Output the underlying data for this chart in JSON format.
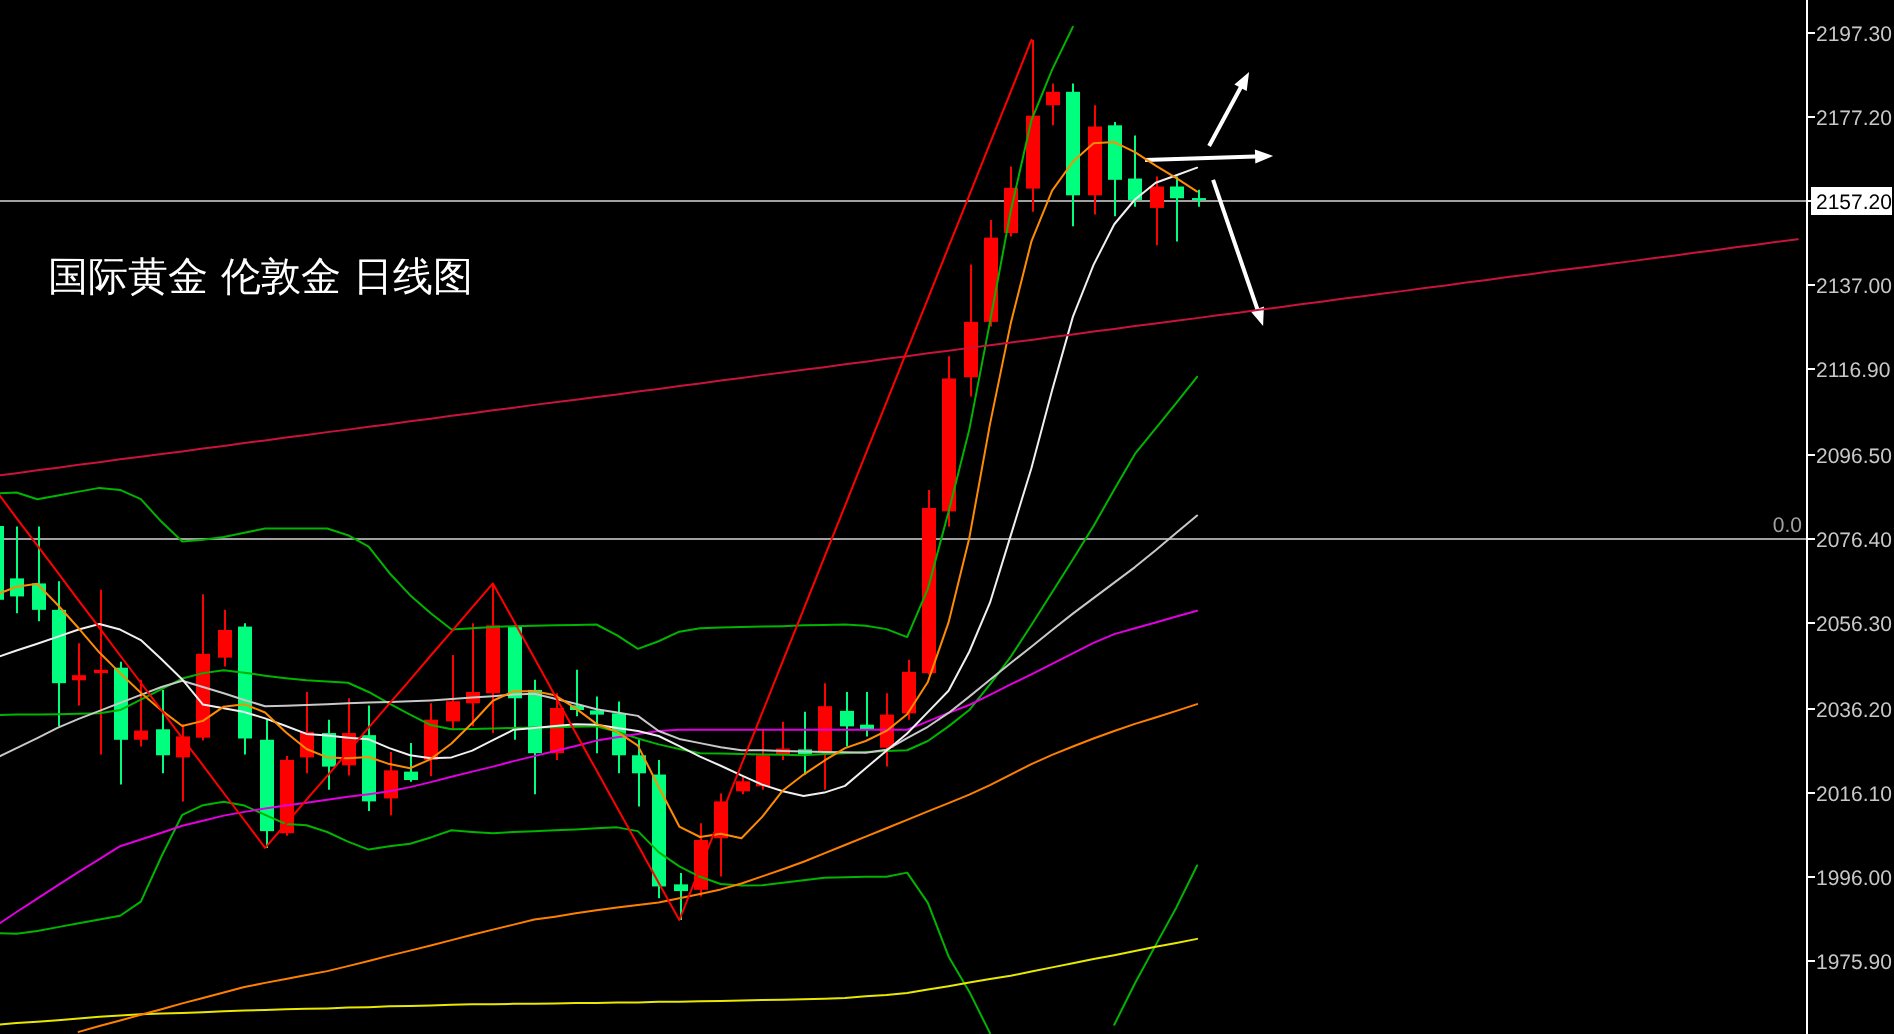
{
  "chart_data": {
    "type": "candlestick",
    "title": "国际黄金 伦敦金 日线图",
    "categories": [
      null,
      null,
      null,
      null,
      null,
      null,
      null,
      null,
      null,
      null,
      null,
      null,
      null,
      null,
      null,
      null,
      null,
      null,
      null,
      null,
      null,
      null,
      null,
      null,
      null,
      null,
      null,
      null,
      null,
      null,
      null,
      null,
      null,
      null,
      null,
      null,
      null,
      null,
      null,
      null,
      null,
      null,
      null,
      null,
      null,
      null,
      null,
      null,
      null,
      null,
      null,
      null,
      null,
      null,
      null,
      null,
      null,
      null,
      null,
      null,
      null,
      null,
      null,
      null,
      null,
      null,
      null,
      null,
      null,
      null,
      null,
      null,
      null,
      null,
      null,
      null,
      null,
      null,
      null,
      null,
      null,
      null,
      null,
      null,
      null,
      null,
      null,
      null
    ],
    "ohlc": [
      [
        2079.4,
        2079.4,
        2061.8,
        2061.8
      ],
      [
        2066.9,
        2079.3,
        2058.6,
        2062.6
      ],
      [
        2065.7,
        2079.3,
        2056.7,
        2059.4
      ],
      [
        2059.4,
        2066.2,
        2031.6,
        2041.9
      ],
      [
        2042.6,
        2051.4,
        2036.6,
        2043.8
      ],
      [
        2044.3,
        2064.2,
        2024.9,
        2045.1
      ],
      [
        2045.6,
        2047.0,
        2017.7,
        2028.4
      ],
      [
        2028.4,
        2042.7,
        2026.8,
        2030.6
      ],
      [
        2030.9,
        2040.3,
        2020.4,
        2024.7
      ],
      [
        2024.2,
        2032.1,
        2013.7,
        2029.2
      ],
      [
        2028.9,
        2063.1,
        2028.2,
        2048.9
      ],
      [
        2048.0,
        2059.4,
        2045.9,
        2054.6
      ],
      [
        2055.4,
        2056.2,
        2024.9,
        2028.7
      ],
      [
        2028.4,
        2033.2,
        2002.6,
        2006.6
      ],
      [
        2006.1,
        2024.5,
        2005.5,
        2023.6
      ],
      [
        2024.2,
        2039.8,
        2020.4,
        2030.3
      ],
      [
        2030.0,
        2033.2,
        2016.5,
        2022.0
      ],
      [
        2022.3,
        2038.3,
        2019.9,
        2030.0
      ],
      [
        2029.5,
        2036.6,
        2011.4,
        2013.7
      ],
      [
        2014.4,
        2025.5,
        2010.4,
        2021.1
      ],
      [
        2020.8,
        2027.6,
        2018.4,
        2018.8
      ],
      [
        2023.6,
        2037.1,
        2019.7,
        2033.2
      ],
      [
        2032.8,
        2048.6,
        2030.8,
        2037.6
      ],
      [
        2037.1,
        2056.2,
        2031.6,
        2039.8
      ],
      [
        2039.5,
        2065.7,
        2030.0,
        2055.7
      ],
      [
        2055.4,
        2055.7,
        2028.4,
        2038.3
      ],
      [
        2040.3,
        2042.7,
        2015.4,
        2025.2
      ],
      [
        2025.2,
        2039.5,
        2023.6,
        2036.0
      ],
      [
        2036.6,
        2045.1,
        2034.0,
        2035.5
      ],
      [
        2035.4,
        2038.7,
        2025.2,
        2034.4
      ],
      [
        2034.7,
        2037.5,
        2020.4,
        2024.7
      ],
      [
        2024.7,
        2028.7,
        2012.5,
        2020.4
      ],
      [
        2020.1,
        2023.6,
        1990.6,
        1993.4
      ],
      [
        1993.9,
        1996.6,
        1985.4,
        1992.3
      ],
      [
        1992.6,
        2008.5,
        1991.0,
        2004.5
      ],
      [
        2004.9,
        2015.6,
        1995.8,
        2013.7
      ],
      [
        2016.1,
        2019.7,
        2015.4,
        2018.5
      ],
      [
        2017.3,
        2030.8,
        2016.5,
        2024.7
      ],
      [
        2024.9,
        2032.7,
        2023.6,
        2026.3
      ],
      [
        2026.1,
        2035.1,
        2020.1,
        2024.9
      ],
      [
        2025.5,
        2041.9,
        2016.5,
        2036.4
      ],
      [
        2035.3,
        2039.8,
        2026.8,
        2031.6
      ],
      [
        2032.0,
        2039.8,
        2029.2,
        2030.8
      ],
      [
        2026.5,
        2039.5,
        2022.0,
        2034.4
      ],
      [
        2034.7,
        2047.5,
        2033.2,
        2044.6
      ],
      [
        2044.3,
        2088.0,
        2044.0,
        2083.7
      ],
      [
        2082.9,
        2119.9,
        2079.3,
        2114.6
      ],
      [
        2114.9,
        2141.8,
        2110.3,
        2128.1
      ],
      [
        2128.1,
        2152.4,
        2127.0,
        2148.2
      ],
      [
        2149.3,
        2165.2,
        2148.5,
        2160.1
      ],
      [
        2159.9,
        2195.4,
        2154.4,
        2177.3
      ],
      [
        2179.8,
        2185.0,
        2175.0,
        2183.0
      ],
      [
        2183.0,
        2185.0,
        2150.9,
        2158.3
      ],
      [
        2158.3,
        2179.8,
        2153.7,
        2174.7
      ],
      [
        2175.0,
        2175.8,
        2153.3,
        2162.0
      ],
      [
        2162.3,
        2172.6,
        2155.6,
        2157.2
      ],
      [
        2155.3,
        2162.8,
        2146.4,
        2160.4
      ],
      [
        2160.4,
        2162.8,
        2147.3,
        2157.6
      ],
      [
        2157.6,
        2159.6,
        2155.6,
        2157.2
      ],
      null,
      null,
      null,
      null,
      null,
      null,
      null,
      null,
      null,
      null,
      null,
      null,
      null,
      null,
      null,
      null,
      null,
      null,
      null,
      null,
      null,
      null,
      null,
      null,
      null,
      null,
      null,
      null,
      null
    ],
    "colors": [
      "#00ff7f",
      "#00ff7f",
      "#00ff7f",
      "#00ff7f",
      "#ff0000",
      "#ff0000",
      "#00ff7f",
      "#ff0000",
      "#00ff7f",
      "#ff0000",
      "#ff0000",
      "#ff0000",
      "#00ff7f",
      "#00ff7f",
      "#ff0000",
      "#ff0000",
      "#00ff7f",
      "#ff0000",
      "#00ff7f",
      "#ff0000",
      "#00ff7f",
      "#ff0000",
      "#ff0000",
      "#ff0000",
      "#ff0000",
      "#00ff7f",
      "#00ff7f",
      "#ff0000",
      "#00ff7f",
      "#00ff7f",
      "#00ff7f",
      "#00ff7f",
      "#00ff7f",
      "#00ff7f",
      "#ff0000",
      "#ff0000",
      "#ff0000",
      "#ff0000",
      "#ff0000",
      "#00ff7f",
      "#ff0000",
      "#00ff7f",
      "#00ff7f",
      "#ff0000",
      "#ff0000",
      "#ff0000",
      "#ff0000",
      "#ff0000",
      "#ff0000",
      "#ff0000",
      "#ff0000",
      "#ff0000",
      "#00ff7f",
      "#ff0000",
      "#00ff7f",
      "#00ff7f",
      "#ff0000",
      "#00ff7f",
      "#00ff7f",
      null,
      null,
      null,
      null,
      null,
      null,
      null,
      null,
      null,
      null,
      null,
      null,
      null,
      null,
      null,
      null,
      null,
      null,
      null,
      null,
      null,
      null,
      null,
      null,
      null,
      null,
      null,
      null,
      null
    ],
    "ylim": [
      1958.2,
      2204.9
    ],
    "yticks": [
      {
        "value": 1975.9,
        "label": "1975.90"
      },
      {
        "value": 1996.0,
        "label": "1996.00"
      },
      {
        "value": 2016.1,
        "label": "2016.10"
      },
      {
        "value": 2036.2,
        "label": "2036.20"
      },
      {
        "value": 2056.3,
        "label": "2056.30"
      },
      {
        "value": 2076.4,
        "label": "2076.40"
      },
      {
        "value": 2096.5,
        "label": "2096.50"
      },
      {
        "value": 2116.9,
        "label": "2116.90"
      },
      {
        "value": 2137.0,
        "label": "2137.00"
      },
      {
        "value": 2157.2,
        "label": "2157.20"
      },
      {
        "value": 2177.2,
        "label": "2177.20"
      },
      {
        "value": 2197.3,
        "label": "2197.30"
      }
    ],
    "tick_labels": "y",
    "ref_lines": [
      {
        "axis": "y",
        "value": 2157.2,
        "color": "#a0a0a0"
      },
      {
        "axis": "y",
        "value": 2076.4,
        "color": "#a0a0a0"
      }
    ],
    "annotations": [
      {
        "text": "0.0",
        "y": 2076.4
      }
    ],
    "series": [
      {
        "type": "line",
        "color": "#00b400",
        "values": [
          2087.2,
          2087.4,
          2085.8,
          2086.7,
          2087.6,
          2088.5,
          2088.0,
          2085.8,
          2080.4,
          2075.7,
          2076.1,
          2076.8,
          2077.8,
          2078.8,
          2078.8,
          2078.8,
          2078.8,
          2077.2,
          2074.5,
          2068.2,
          2062.9,
          2058.6,
          2054.7,
          2055.0,
          2055.3,
          2055.5,
          2055.6,
          2055.7,
          2055.8,
          2055.9,
          2053.3,
          2050.1,
          2051.9,
          2054.2,
          2055.0,
          2055.2,
          2055.3,
          2055.4,
          2055.5,
          2055.7,
          2055.8,
          2055.9,
          2055.6,
          2054.8,
          2052.9,
          2064.4,
          2082.8,
          2102.4,
          2128.1,
          2154.5,
          2176.2,
          2188.3,
          2198.5,
          null,
          null,
          null,
          null,
          null,
          null,
          null,
          null,
          null,
          null,
          null,
          null,
          null,
          null,
          null,
          null,
          null,
          null,
          null,
          null,
          null,
          null,
          null,
          null,
          null,
          null,
          null,
          null,
          null,
          null,
          null,
          null,
          null,
          null,
          null
        ]
      },
      {
        "type": "line",
        "color": "#00b400",
        "values": [
          2034.3,
          2034.4,
          2034.4,
          2034.5,
          2034.6,
          2034.7,
          2035.5,
          2038.0,
          2040.5,
          2043.0,
          2044.3,
          2045.0,
          2044.4,
          2043.7,
          2043.1,
          2042.6,
          2042.3,
          2042.0,
          2039.8,
          2037.0,
          2034.4,
          2031.9,
          2030.9,
          2031.0,
          2031.1,
          2031.2,
          2031.3,
          2031.4,
          2031.5,
          2031.6,
          2030.3,
          2028.7,
          2027.3,
          2026.2,
          2025.2,
          2025.1,
          2025.0,
          2024.9,
          2024.8,
          2024.7,
          2025.0,
          2025.2,
          2025.5,
          2025.7,
          2025.9,
          2028.1,
          2031.6,
          2035.5,
          2041.6,
          2048.2,
          2055.8,
          2063.6,
          2071.4,
          2079.4,
          2088.1,
          2096.6,
          2102.7,
          2108.8,
          2115.0,
          null,
          null,
          null,
          null,
          null,
          null,
          null,
          null,
          null,
          null,
          null,
          null,
          null,
          null,
          null,
          null,
          null,
          null,
          null,
          null,
          null,
          null,
          null,
          null,
          null,
          null,
          null,
          null,
          null
        ]
      },
      {
        "type": "line",
        "color": "#00b400",
        "values": [
          1982.3,
          1982.1,
          1982.8,
          1983.7,
          1984.6,
          1985.5,
          1986.4,
          1989.8,
          2000.6,
          2010.5,
          2012.8,
          2013.6,
          2012.7,
          2010.5,
          2008.3,
          2008.0,
          2006.4,
          2004.1,
          2002.2,
          2003.0,
          2003.6,
          2005.1,
          2006.8,
          2006.4,
          2006.1,
          2006.4,
          2006.6,
          2006.8,
          2007.0,
          2007.3,
          2007.5,
          2006.6,
          2001.6,
          1998.2,
          1995.7,
          1994.0,
          1993.6,
          1993.7,
          1994.3,
          1994.9,
          1995.5,
          1995.6,
          1995.7,
          1995.7,
          1996.7,
          1989.5,
          1976.7,
          1968.3,
          1958.4,
          null,
          null,
          null,
          null,
          null,
          1960.4,
          1970.3,
          1979.4,
          1988.4,
          1998.4,
          null,
          null,
          null,
          null,
          null,
          null,
          null,
          null,
          null,
          null,
          null,
          null,
          null,
          null,
          null,
          null,
          null,
          null,
          null,
          null,
          null,
          null,
          null,
          null,
          null,
          null,
          null,
          null,
          null
        ]
      },
      {
        "type": "line",
        "color": "#e8e800",
        "values": [
          1960.4,
          1960.8,
          1961.1,
          1961.5,
          1961.9,
          1962.3,
          1962.6,
          1962.9,
          1963.1,
          1963.2,
          1963.4,
          1963.6,
          1963.8,
          1963.9,
          1964.1,
          1964.2,
          1964.3,
          1964.5,
          1964.6,
          1964.8,
          1964.9,
          1965.0,
          1965.2,
          1965.3,
          1965.3,
          1965.4,
          1965.4,
          1965.5,
          1965.6,
          1965.6,
          1965.7,
          1965.7,
          1965.9,
          1965.9,
          1966.0,
          1966.1,
          1966.2,
          1966.3,
          1966.4,
          1966.5,
          1966.6,
          1966.8,
          1967.2,
          1967.5,
          1968.0,
          1968.8,
          1969.6,
          1970.5,
          1971.3,
          1972.1,
          1973.1,
          1974.1,
          1975.1,
          1976.1,
          1977.0,
          1978.0,
          1979.0,
          1979.9,
          1980.9,
          null,
          null,
          null,
          null,
          null,
          null,
          null,
          null,
          null,
          null,
          null,
          null,
          null,
          null,
          null,
          null,
          null,
          null,
          null,
          null,
          null,
          null,
          null,
          null,
          null,
          null,
          null,
          null,
          null
        ]
      },
      {
        "type": "line",
        "color": "#ff8000",
        "values": [
          null,
          null,
          null,
          null,
          1958.7,
          1960.1,
          1961.4,
          1962.8,
          1964.1,
          1965.5,
          1966.8,
          1968.1,
          1969.4,
          1970.4,
          1971.3,
          1972.3,
          1973.2,
          1974.4,
          1975.6,
          1976.9,
          1978.1,
          1979.3,
          1980.6,
          1981.9,
          1983.1,
          1984.3,
          1985.5,
          1986.2,
          1987.0,
          1987.7,
          1988.4,
          1989.0,
          1989.6,
          1990.6,
          1991.6,
          1992.7,
          1994.1,
          1995.8,
          1997.5,
          1999.3,
          2001.3,
          2003.3,
          2005.3,
          2007.3,
          2009.3,
          2011.3,
          2013.3,
          2015.3,
          2017.6,
          2020.1,
          2022.6,
          2024.8,
          2026.8,
          2028.7,
          2030.5,
          2032.2,
          2033.7,
          2035.3,
          2036.9,
          null,
          null,
          null,
          null,
          null,
          null,
          null,
          null,
          null,
          null,
          null,
          null,
          null,
          null,
          null,
          null,
          null,
          null,
          null,
          null,
          null,
          null,
          null,
          null,
          null,
          null,
          null,
          null,
          null
        ]
      },
      {
        "type": "line",
        "color": "#e000e0",
        "values": [
          1984.0,
          1987.3,
          1990.5,
          1993.7,
          1996.9,
          1999.9,
          2003.0,
          2004.6,
          2006.2,
          2007.9,
          2009.1,
          2010.3,
          2011.2,
          2012.0,
          2012.7,
          2013.4,
          2014.1,
          2014.8,
          2015.4,
          2016.1,
          2017.1,
          2018.3,
          2019.6,
          2020.8,
          2022.0,
          2023.3,
          2024.5,
          2025.7,
          2026.9,
          2028.2,
          2029.0,
          2029.8,
          2030.5,
          2030.8,
          2030.8,
          2030.8,
          2030.8,
          2030.8,
          2030.8,
          2030.8,
          2030.8,
          2030.8,
          2030.8,
          2030.8,
          2030.8,
          2032.8,
          2034.8,
          2036.7,
          2039.1,
          2041.6,
          2044.0,
          2046.5,
          2049.0,
          2051.5,
          2053.6,
          2055.0,
          2056.4,
          2057.8,
          2059.2,
          null,
          null,
          null,
          null,
          null,
          null,
          null,
          null,
          null,
          null,
          null,
          null,
          null,
          null,
          null,
          null,
          null,
          null,
          null,
          null,
          null,
          null,
          null,
          null,
          null,
          null,
          null,
          null,
          null
        ]
      },
      {
        "type": "line",
        "color": "#c8c8c8",
        "values": [
          2024.0,
          2026.4,
          2028.8,
          2031.3,
          2033.4,
          2035.3,
          2037.2,
          2039.1,
          2041.0,
          2042.5,
          2041.0,
          2039.5,
          2037.9,
          2036.4,
          2036.5,
          2036.7,
          2036.9,
          2037.1,
          2037.3,
          2037.4,
          2037.6,
          2037.8,
          2038.1,
          2038.5,
          2038.8,
          2039.2,
          2039.4,
          2038.2,
          2037.0,
          2035.7,
          2034.9,
          2034.1,
          2030.5,
          2028.6,
          2027.6,
          2026.6,
          2025.9,
          2025.9,
          2025.7,
          2025.6,
          2025.5,
          2025.4,
          2025.3,
          2026.0,
          2028.8,
          2031.5,
          2034.8,
          2038.7,
          2042.7,
          2046.7,
          2050.6,
          2054.6,
          2058.5,
          2062.2,
          2065.9,
          2069.6,
          2073.6,
          2077.8,
          2081.9,
          null,
          null,
          null,
          null,
          null,
          null,
          null,
          null,
          null,
          null,
          null,
          null,
          null,
          null,
          null,
          null,
          null,
          null,
          null,
          null,
          null,
          null,
          null,
          null,
          null,
          null,
          null,
          null,
          null
        ]
      },
      {
        "type": "line",
        "color": "#f0f0f0",
        "values": [
          2048.0,
          2049.7,
          2051.3,
          2053.0,
          2054.7,
          2056.0,
          2054.7,
          2052.2,
          2047.6,
          2042.8,
          2036.8,
          2035.9,
          2035.0,
          2033.5,
          2031.7,
          2029.8,
          2029.4,
          2028.9,
          2028.5,
          2026.4,
          2024.7,
          2024.0,
          2024.2,
          2025.8,
          2028.3,
          2030.8,
          2031.2,
          2031.7,
          2032.1,
          2032.0,
          2031.2,
          2030.5,
          2029.3,
          2026.9,
          2024.4,
          2022.2,
          2019.9,
          2017.7,
          2016.1,
          2015.0,
          2015.8,
          2017.4,
          2021.6,
          2025.8,
          2029.9,
          2035.0,
          2040.1,
          2049.4,
          2061.1,
          2077.1,
          2093.2,
          2111.8,
          2129.3,
          2141.7,
          2151.4,
          2157.3,
          2161.3,
          2163.1,
          2164.9,
          null,
          null,
          null,
          null,
          null,
          null,
          null,
          null,
          null,
          null,
          null,
          null,
          null,
          null,
          null,
          null,
          null,
          null,
          null,
          null,
          null,
          null,
          null,
          null,
          null,
          null,
          null,
          null,
          null
        ]
      },
      {
        "type": "line",
        "color": "#ff8c00",
        "values": [
          2063.0,
          2064.9,
          2065.6,
          2060.5,
          2055.0,
          2049.2,
          2044.3,
          2039.6,
          2035.4,
          2031.7,
          2032.9,
          2036.3,
          2036.9,
          2034.9,
          2030.2,
          2026.2,
          2024.2,
          2024.0,
          2024.3,
          2022.6,
          2021.6,
          2023.8,
          2027.5,
          2032.4,
          2037.7,
          2040.0,
          2040.0,
          2039.0,
          2035.9,
          2032.2,
          2030.3,
          2027.0,
          2017.2,
          2007.7,
          2005.2,
          2006.0,
          2004.9,
          2010.0,
          2016.3,
          2020.1,
          2023.4,
          2026.4,
          2028.1,
          2030.5,
          2034.5,
          2042.2,
          2056.4,
          2076.5,
          2103.7,
          2127.7,
          2147.3,
          2159.4,
          2166.3,
          2170.7,
          2171.0,
          2168.6,
          2165.4,
          2162.4,
          2159.2,
          null,
          null,
          null,
          null,
          null,
          null,
          null,
          null,
          null,
          null,
          null,
          null,
          null,
          null,
          null,
          null,
          null,
          null,
          null,
          null,
          null,
          null,
          null,
          null,
          null,
          null,
          null,
          null,
          null
        ]
      },
      {
        "type": "line",
        "color": "#c8143c",
        "values": [
          2091.4,
          2092.0,
          2092.7,
          2093.3,
          2094.0,
          2094.6,
          2095.3,
          2095.9,
          2096.6,
          2097.2,
          2097.9,
          2098.5,
          2099.2,
          2099.8,
          2100.5,
          2101.1,
          2101.8,
          2102.4,
          2103.1,
          2103.7,
          2104.4,
          2105.0,
          2105.7,
          2106.3,
          2107.0,
          2107.6,
          2108.3,
          2108.9,
          2109.5,
          2110.2,
          2110.8,
          2111.5,
          2112.1,
          2112.8,
          2113.4,
          2114.1,
          2114.7,
          2115.4,
          2116.0,
          2116.7,
          2117.3,
          2118.0,
          2118.6,
          2119.3,
          2119.9,
          2120.6,
          2121.2,
          2121.9,
          2122.5,
          2123.2,
          2123.8,
          2124.5,
          2125.1,
          2125.8,
          2126.4,
          2127.1,
          2127.7,
          2128.4,
          2129.0,
          2129.7,
          2130.3,
          2131.0,
          2131.6,
          2132.3,
          2132.9,
          2133.6,
          2134.2,
          2134.9,
          2135.5,
          2136.2,
          2136.8,
          2137.5,
          2138.1,
          2138.8,
          2139.4,
          2140.1,
          2140.7,
          2141.3,
          2142.0,
          2142.6,
          2143.3,
          2143.9,
          2144.6,
          2145.2,
          2145.9,
          2146.5,
          2147.2,
          2147.8
        ]
      },
      {
        "type": "line",
        "color": "#ff0000",
        "values": [
          2087.9,
          2081.3,
          2074.8,
          2068.2,
          2061.6,
          2055.1,
          2048.5,
          2042.0,
          2035.4,
          2028.8,
          2022.3,
          2015.7,
          2009.2,
          2002.6,
          2008.3,
          2014.1,
          2019.8,
          2025.5,
          2031.3,
          2037.0,
          2042.7,
          2048.5,
          2054.2,
          2060.0,
          2065.7,
          2056.8,
          2047.9,
          2038.9,
          2030.0,
          2021.1,
          2012.2,
          2003.3,
          1994.3,
          1985.4,
          1997.8,
          2010.1,
          2022.5,
          2034.8,
          2047.2,
          2059.5,
          2071.9,
          2084.2,
          2096.6,
          2108.9,
          2121.3,
          2133.6,
          2146.0,
          2158.3,
          2170.7,
          2183.0,
          2195.4,
          null,
          null,
          null,
          null,
          null,
          null,
          null,
          null,
          null,
          null,
          null,
          null,
          null,
          null,
          null,
          null,
          null,
          null,
          null,
          null,
          null,
          null,
          null,
          null,
          null,
          null,
          null,
          null,
          null,
          null,
          null,
          null,
          null,
          null,
          null,
          null,
          null
        ]
      }
    ]
  }
}
